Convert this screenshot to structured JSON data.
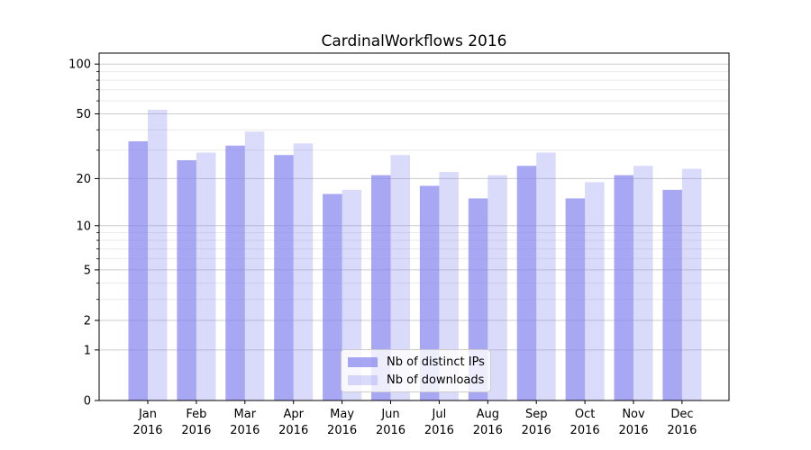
{
  "chart_data": {
    "type": "bar",
    "title": "CardinalWorkflows 2016",
    "categories": [
      "Jan 2016",
      "Feb 2016",
      "Mar 2016",
      "Apr 2016",
      "May 2016",
      "Jun 2016",
      "Jul 2016",
      "Aug 2016",
      "Sep 2016",
      "Oct 2016",
      "Nov 2016",
      "Dec 2016"
    ],
    "month_labels": [
      "Jan",
      "Feb",
      "Mar",
      "Apr",
      "May",
      "Jun",
      "Jul",
      "Aug",
      "Sep",
      "Oct",
      "Nov",
      "Dec"
    ],
    "year_label": "2016",
    "series": [
      {
        "name": "Nb of distinct IPs",
        "color": "#8686f0",
        "opacity": 0.73,
        "values": [
          34,
          26,
          32,
          28,
          16,
          21,
          18,
          15,
          24,
          15,
          21,
          17
        ]
      },
      {
        "name": "Nb of downloads",
        "color": "#8686f0",
        "opacity": 0.31,
        "values": [
          53,
          29,
          39,
          33,
          17,
          28,
          22,
          21,
          29,
          19,
          24,
          23
        ]
      }
    ],
    "yscale": "log1p",
    "ylim": [
      0,
      116
    ],
    "y_ticks": [
      0,
      1,
      2,
      5,
      10,
      20,
      50,
      100
    ],
    "y_tick_labels": [
      "0",
      "1",
      "2",
      "5",
      "10",
      "20",
      "50",
      "100"
    ],
    "y_minor_ticks": [
      3,
      4,
      6,
      7,
      8,
      9,
      30,
      40,
      60,
      70,
      80,
      90
    ],
    "grid": "on",
    "legend": {
      "position": "lower center",
      "labels": [
        "Nb of distinct IPs",
        "Nb of downloads"
      ]
    },
    "colors": {
      "bar_dark_rendered": "#a6a6f2",
      "bar_light_rendered": "#d9d9f9",
      "grid_major": "#cccccc",
      "grid_minor": "#e9e9e9",
      "axis": "#000000",
      "background": "#ffffff"
    }
  }
}
